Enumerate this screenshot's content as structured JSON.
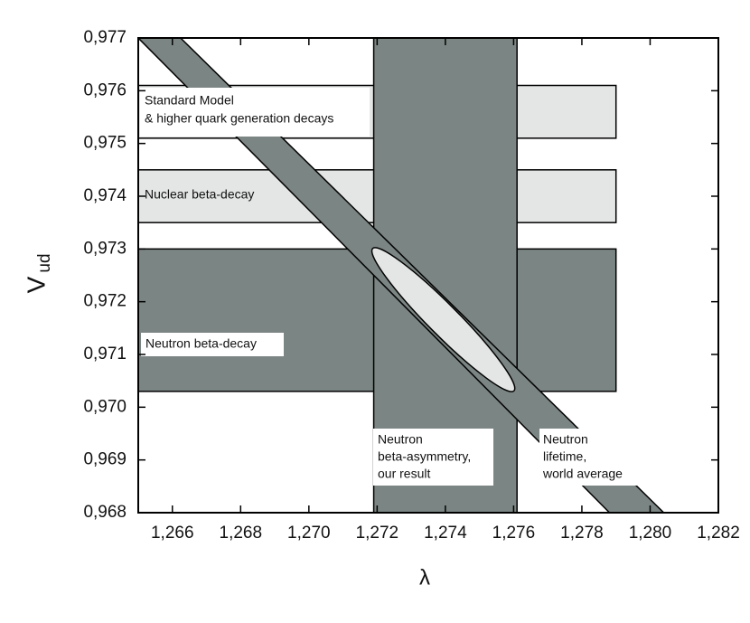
{
  "chart_data": {
    "type": "region",
    "xlabel": "λ",
    "ylabel": "V",
    "ylabel_sub": "ud",
    "xlim": [
      1.265,
      1.282
    ],
    "ylim": [
      0.968,
      0.977
    ],
    "xticks": [
      {
        "value": 1.266,
        "label": "1,266"
      },
      {
        "value": 1.268,
        "label": "1,268"
      },
      {
        "value": 1.27,
        "label": "1,270"
      },
      {
        "value": 1.272,
        "label": "1,272"
      },
      {
        "value": 1.274,
        "label": "1,274"
      },
      {
        "value": 1.276,
        "label": "1,276"
      },
      {
        "value": 1.278,
        "label": "1,278"
      },
      {
        "value": 1.28,
        "label": "1,280"
      },
      {
        "value": 1.282,
        "label": "1,282"
      }
    ],
    "yticks": [
      {
        "value": 0.968,
        "label": "0,968"
      },
      {
        "value": 0.969,
        "label": "0,969"
      },
      {
        "value": 0.97,
        "label": "0,970"
      },
      {
        "value": 0.971,
        "label": "0,971"
      },
      {
        "value": 0.972,
        "label": "0,972"
      },
      {
        "value": 0.973,
        "label": "0,973"
      },
      {
        "value": 0.974,
        "label": "0,974"
      },
      {
        "value": 0.975,
        "label": "0,975"
      },
      {
        "value": 0.976,
        "label": "0,976"
      },
      {
        "value": 0.977,
        "label": "0,977"
      }
    ],
    "regions": [
      {
        "kind": "rect",
        "label": [
          "Standard Model",
          "& higher quark generation decays"
        ],
        "color": "#e4e6e5",
        "x": [
          1.265,
          1.279
        ],
        "y": [
          0.9751,
          0.9761
        ]
      },
      {
        "kind": "rect",
        "label": [
          "Nuclear beta-decay"
        ],
        "color": "#e4e6e5",
        "x": [
          1.265,
          1.279
        ],
        "y": [
          0.9735,
          0.9745
        ]
      },
      {
        "kind": "rect",
        "label": [
          "Neutron beta-decay"
        ],
        "color": "#7b8583",
        "x": [
          1.265,
          1.279
        ],
        "y": [
          0.9703,
          0.973
        ]
      },
      {
        "kind": "rect",
        "label": [
          "Neutron",
          "beta-asymmetry,",
          "our result"
        ],
        "color": "#7b8583",
        "x": [
          1.2719,
          1.2761
        ],
        "y": [
          0.968,
          0.977
        ]
      },
      {
        "kind": "polygon",
        "label": [
          "Neutron",
          "lifetime,",
          "world average"
        ],
        "color": "#7b8583",
        "x": [
          1.265,
          1.26624,
          1.2804,
          1.27881
        ],
        "y": [
          0.977,
          0.977,
          0.968,
          0.968
        ]
      },
      {
        "kind": "ellipse",
        "color": "#e4e6e5",
        "x": [
          1.27394,
          1.27601,
          1.27431
        ],
        "y": [
          0.97166,
          0.97031,
          0.97182
        ]
      }
    ]
  }
}
